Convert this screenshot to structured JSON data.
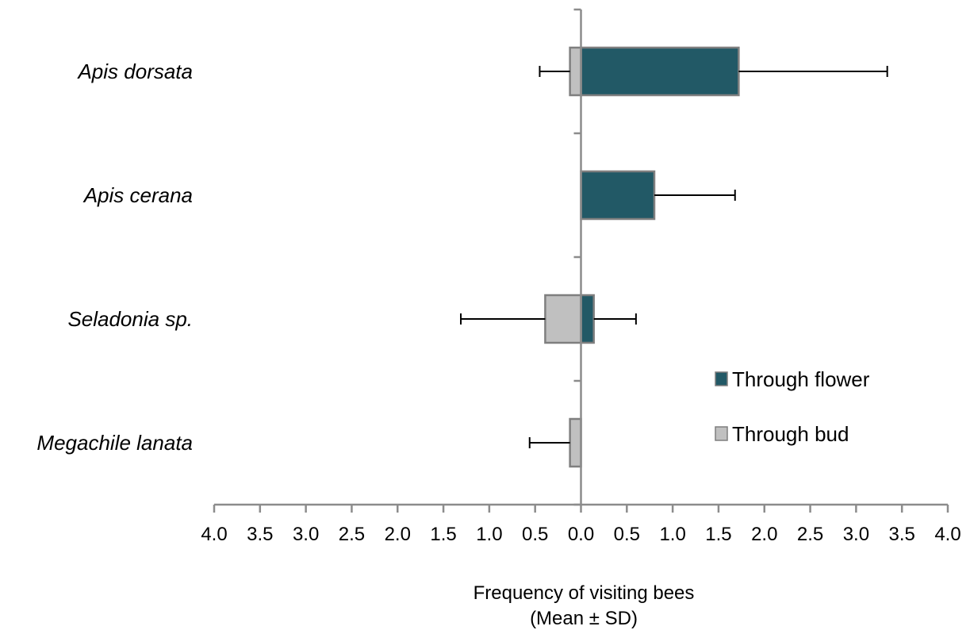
{
  "chart_data": {
    "type": "bar",
    "orientation": "horizontal-diverging",
    "categories": [
      "Apis dorsata",
      "Apis cerana",
      "Seladonia sp.",
      "Megachile lanata"
    ],
    "series": [
      {
        "name": "Through flower",
        "color": "#225966",
        "side": "right",
        "values": [
          1.72,
          0.8,
          0.14,
          null
        ],
        "sd": [
          1.62,
          0.88,
          0.46,
          null
        ]
      },
      {
        "name": "Through bud",
        "color": "#c0c0c0",
        "side": "left",
        "values": [
          0.12,
          null,
          0.39,
          0.12
        ],
        "sd": [
          0.33,
          null,
          0.92,
          0.44
        ]
      }
    ],
    "xticks": [
      "4.0",
      "3.5",
      "3.0",
      "2.5",
      "2.0",
      "1.5",
      "1.0",
      "0.5",
      "0.0",
      "0.5",
      "1.0",
      "1.5",
      "2.0",
      "2.5",
      "3.0",
      "3.5",
      "4.0"
    ],
    "xlim": [
      -4,
      4
    ],
    "xlabel": "Frequency of visiting bees",
    "xlabel_sub": "(Mean ± SD)",
    "legend_position": "lower-right",
    "grid": false
  }
}
